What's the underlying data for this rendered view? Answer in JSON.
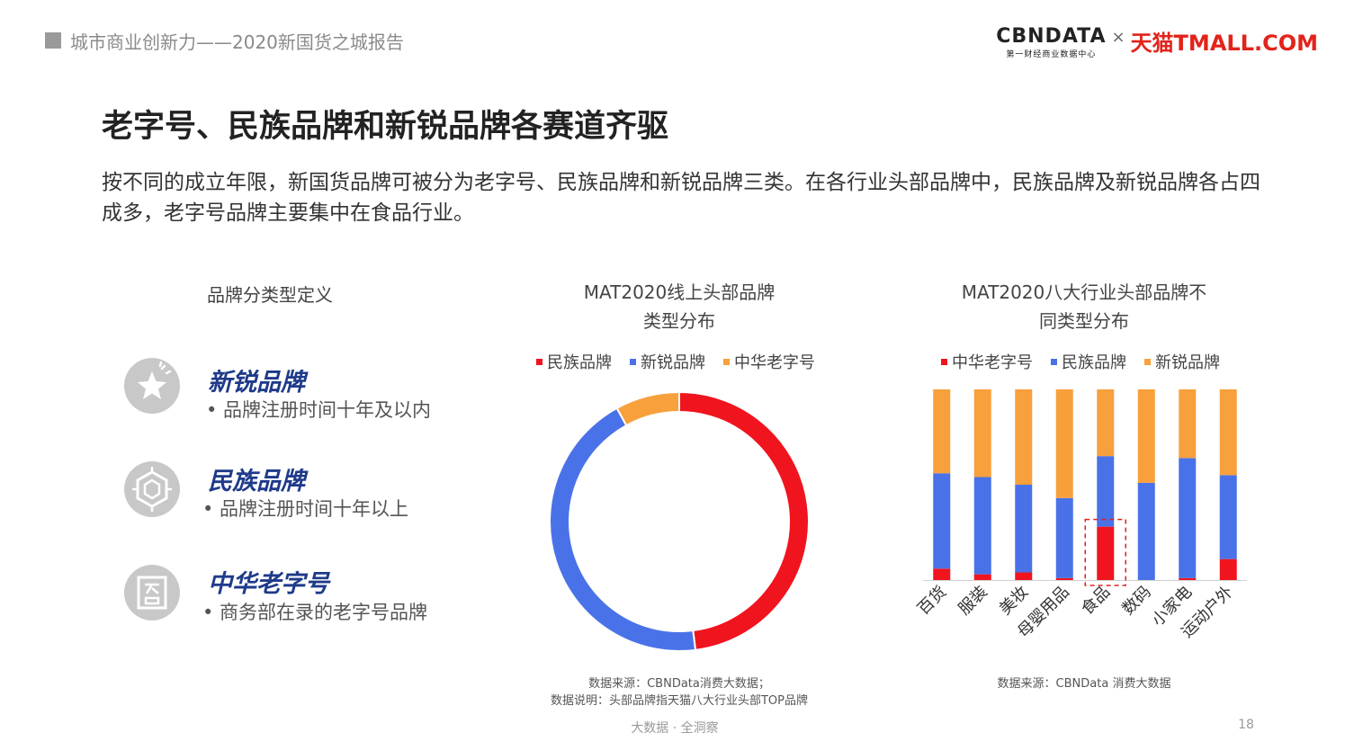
{
  "header": {
    "report_title": "城市商业创新力——2020新国货之城报告",
    "logo_cbndata": "CBNDATA",
    "logo_cbndata_sub": "第一财经商业数据中心",
    "logo_x": "×",
    "logo_tmall": "天猫TMALL.COM"
  },
  "slide": {
    "title": "老字号、民族品牌和新锐品牌各赛道齐驱",
    "description": "按不同的成立年限，新国货品牌可被分为老字号、民族品牌和新锐品牌三类。在各行业头部品牌中，民族品牌及新锐品牌各占四成多，老字号品牌主要集中在食品行业。"
  },
  "definitions": {
    "title": "品牌分类型定义",
    "items": [
      {
        "name": "新锐品牌",
        "desc": "• 品牌注册时间十年及以内",
        "icon": "star-badge-icon"
      },
      {
        "name": "民族品牌",
        "desc": "• 品牌注册时间十年以上",
        "icon": "hexagon-emblem-icon"
      },
      {
        "name": "中华老字号",
        "desc": "• 商务部在录的老字号品牌",
        "icon": "seal-icon"
      }
    ]
  },
  "colors": {
    "red": "#f0141e",
    "blue": "#4a72e8",
    "orange": "#f8a03c",
    "highlight_box": "#e02020"
  },
  "donut": {
    "title_line1": "MAT2020线上头部品牌",
    "title_line2": "类型分布",
    "source_line1": "数据来源：CBNData消费大数据；",
    "source_line2": "数据说明：头部品牌指天猫八大行业头部TOP品牌"
  },
  "bars": {
    "title_line1": "MAT2020八大行业头部品牌不",
    "title_line2": "同类型分布",
    "source": "数据来源：CBNData 消费大数据"
  },
  "footer": {
    "text": "大数据 · 全洞察",
    "page": "18"
  },
  "chart_data": [
    {
      "type": "pie",
      "donut": true,
      "legend_position": "top",
      "categories": [
        "民族品牌",
        "新锐品牌",
        "中华老字号"
      ],
      "values": [
        48,
        44,
        8
      ],
      "colors": [
        "#f0141e",
        "#4a72e8",
        "#f8a03c"
      ]
    },
    {
      "type": "bar",
      "stacked": true,
      "percent": true,
      "legend_position": "top",
      "categories": [
        "百货",
        "服装",
        "美妆",
        "母婴用品",
        "食品",
        "数码",
        "小家电",
        "运动户外"
      ],
      "series": [
        {
          "name": "中华老字号",
          "color": "#f0141e",
          "values": [
            6,
            3,
            4,
            1,
            28,
            0,
            1,
            11
          ]
        },
        {
          "name": "民族品牌",
          "color": "#4a72e8",
          "values": [
            50,
            51,
            46,
            42,
            37,
            51,
            63,
            44
          ]
        },
        {
          "name": "新锐品牌",
          "color": "#f8a03c",
          "values": [
            44,
            46,
            50,
            57,
            35,
            49,
            36,
            45
          ]
        }
      ],
      "highlight_category": "食品",
      "ylim": [
        0,
        100
      ]
    }
  ]
}
